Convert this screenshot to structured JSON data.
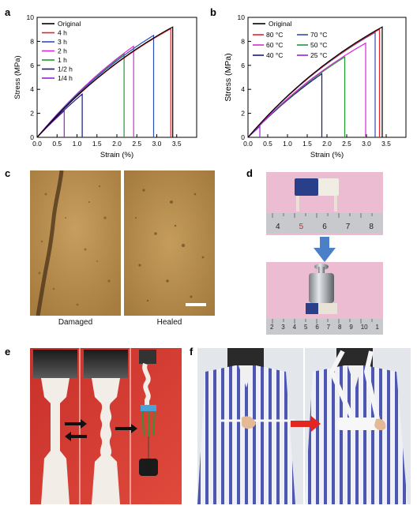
{
  "panels": {
    "a": "a",
    "b": "b",
    "c": "c",
    "d": "d",
    "e": "e",
    "f": "f"
  },
  "chart_data": [
    {
      "type": "line",
      "panel": "a",
      "xlabel": "Strain (%)",
      "ylabel": "Stress (MPa)",
      "xlim": [
        0,
        4
      ],
      "ylim": [
        0,
        10
      ],
      "xticks": [
        "0.0",
        "0.5",
        "1.0",
        "1.5",
        "2.0",
        "2.5",
        "3.0",
        "3.5"
      ],
      "yticks": [
        "0",
        "2",
        "4",
        "6",
        "8",
        "10"
      ],
      "legend_position": "top-left",
      "series": [
        {
          "name": "Original",
          "color": "#000000",
          "end_strain": 3.4,
          "end_stress": 9.2
        },
        {
          "name": "4 h",
          "color": "#e8212a",
          "end_strain": 3.35,
          "end_stress": 9.05
        },
        {
          "name": "3 h",
          "color": "#2b4eb4",
          "end_strain": 2.92,
          "end_stress": 8.5
        },
        {
          "name": "2 h",
          "color": "#d62ad6",
          "end_strain": 2.42,
          "end_stress": 7.6
        },
        {
          "name": "1 h",
          "color": "#1f9a2e",
          "end_strain": 2.18,
          "end_stress": 6.95
        },
        {
          "name": "1/2 h",
          "color": "#17178a",
          "end_strain": 1.13,
          "end_stress": 3.6
        },
        {
          "name": "1/4 h",
          "color": "#9b1fd8",
          "end_strain": 0.68,
          "end_stress": 2.2
        }
      ]
    },
    {
      "type": "line",
      "panel": "b",
      "xlabel": "Strain (%)",
      "ylabel": "Stress (MPa)",
      "xlim": [
        0,
        4
      ],
      "ylim": [
        0,
        10
      ],
      "xticks": [
        "0.0",
        "0.5",
        "1.0",
        "1.5",
        "2.0",
        "2.5",
        "3.0",
        "3.5"
      ],
      "yticks": [
        "0",
        "2",
        "4",
        "6",
        "8",
        "10"
      ],
      "legend_position": "top-left",
      "series": [
        {
          "name": "Original",
          "color": "#000000",
          "end_strain": 3.4,
          "end_stress": 9.2
        },
        {
          "name": "80 °C",
          "color": "#e8212a",
          "end_strain": 3.33,
          "end_stress": 9.0
        },
        {
          "name": "70 °C",
          "color": "#2b4eb4",
          "end_strain": 3.22,
          "end_stress": 8.75
        },
        {
          "name": "60 °C",
          "color": "#d62ad6",
          "end_strain": 2.98,
          "end_stress": 7.85
        },
        {
          "name": "50 °C",
          "color": "#1f9a2e",
          "end_strain": 2.45,
          "end_stress": 6.7
        },
        {
          "name": "40 °C",
          "color": "#17178a",
          "end_strain": 1.87,
          "end_stress": 5.3
        },
        {
          "name": "25 °C",
          "color": "#9b1fd8",
          "end_strain": 0.3,
          "end_stress": 0.9
        }
      ]
    }
  ],
  "panel_c": {
    "left_caption": "Damaged",
    "right_caption": "Healed"
  },
  "panel_d": {
    "ruler_top": [
      "4",
      "5",
      "6",
      "7",
      "8"
    ],
    "ruler_bottom": [
      "2",
      "3",
      "4",
      "5",
      "6",
      "7",
      "8",
      "9",
      "10",
      "1"
    ]
  },
  "colors": {
    "micrograph": "#b98f4f",
    "pink_background": "#e9b6cf",
    "red_background": "#d63a33",
    "arrow_blue": "#4b7fc7",
    "arrow_red": "#e3261f"
  }
}
